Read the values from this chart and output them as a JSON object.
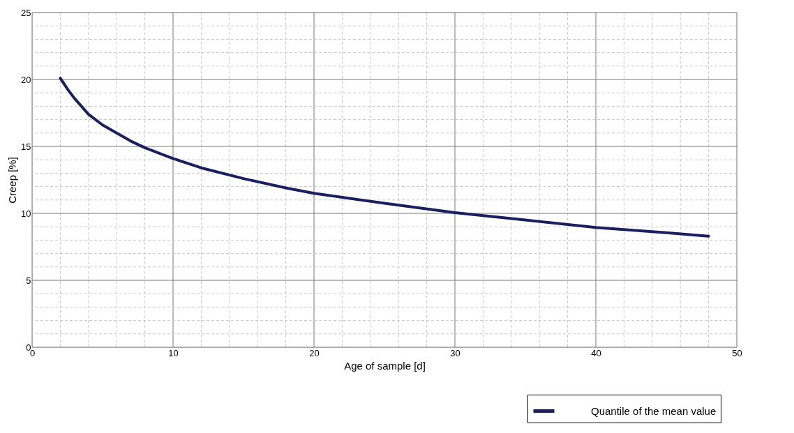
{
  "chart_data": {
    "type": "line",
    "xlabel": "Age of sample [d]",
    "ylabel": "Creep [%]",
    "x": [
      2,
      2.5,
      3,
      4,
      5,
      6,
      7,
      8,
      10,
      12,
      15,
      18,
      20,
      25,
      30,
      35,
      40,
      45,
      48
    ],
    "series": [
      {
        "name": "Quantile of the mean value",
        "color": "#1a1f5e",
        "values": [
          20.1,
          19.3,
          18.6,
          17.4,
          16.6,
          16.0,
          15.4,
          14.9,
          14.1,
          13.4,
          12.6,
          11.9,
          11.5,
          10.75,
          10.05,
          9.5,
          8.95,
          8.55,
          8.3
        ]
      }
    ],
    "xlim": [
      0,
      50
    ],
    "ylim": [
      0,
      25
    ],
    "xticks": [
      0,
      {
        "value": 2,
        "label": null
      },
      {
        "value": 4,
        "label": null
      },
      {
        "value": 6,
        "label": null
      },
      {
        "value": 8,
        "label": null
      },
      10,
      {
        "value": 12,
        "label": null
      },
      {
        "value": 14,
        "label": null
      },
      {
        "value": 16,
        "label": null
      },
      {
        "value": 18,
        "label": null
      },
      20,
      {
        "value": 22,
        "label": null
      },
      {
        "value": 24,
        "label": null
      },
      {
        "value": 26,
        "label": null
      },
      {
        "value": 28,
        "label": null
      },
      30,
      {
        "value": 32,
        "label": null
      },
      {
        "value": 34,
        "label": null
      },
      {
        "value": 36,
        "label": null
      },
      {
        "value": 38,
        "label": null
      },
      40,
      {
        "value": 42,
        "label": null
      },
      {
        "value": 44,
        "label": null
      },
      {
        "value": 46,
        "label": null
      },
      {
        "value": 48,
        "label": null
      },
      50
    ],
    "yticks": [
      0,
      {
        "value": 1,
        "label": null
      },
      {
        "value": 2,
        "label": null
      },
      {
        "value": 3,
        "label": null
      },
      {
        "value": 4,
        "label": null
      },
      5,
      {
        "value": 6,
        "label": null
      },
      {
        "value": 7,
        "label": null
      },
      {
        "value": 8,
        "label": null
      },
      {
        "value": 9,
        "label": null
      },
      10,
      {
        "value": 11,
        "label": null
      },
      {
        "value": 12,
        "label": null
      },
      {
        "value": 13,
        "label": null
      },
      {
        "value": 14,
        "label": null
      },
      15,
      {
        "value": 16,
        "label": null
      },
      {
        "value": 17,
        "label": null
      },
      {
        "value": 18,
        "label": null
      },
      {
        "value": 19,
        "label": null
      },
      20,
      {
        "value": 21,
        "label": null
      },
      {
        "value": 22,
        "label": null
      },
      {
        "value": 23,
        "label": null
      },
      {
        "value": 24,
        "label": null
      },
      25
    ],
    "grid": true,
    "legend": "bottom right",
    "marker": "none",
    "line_style": "solid"
  }
}
